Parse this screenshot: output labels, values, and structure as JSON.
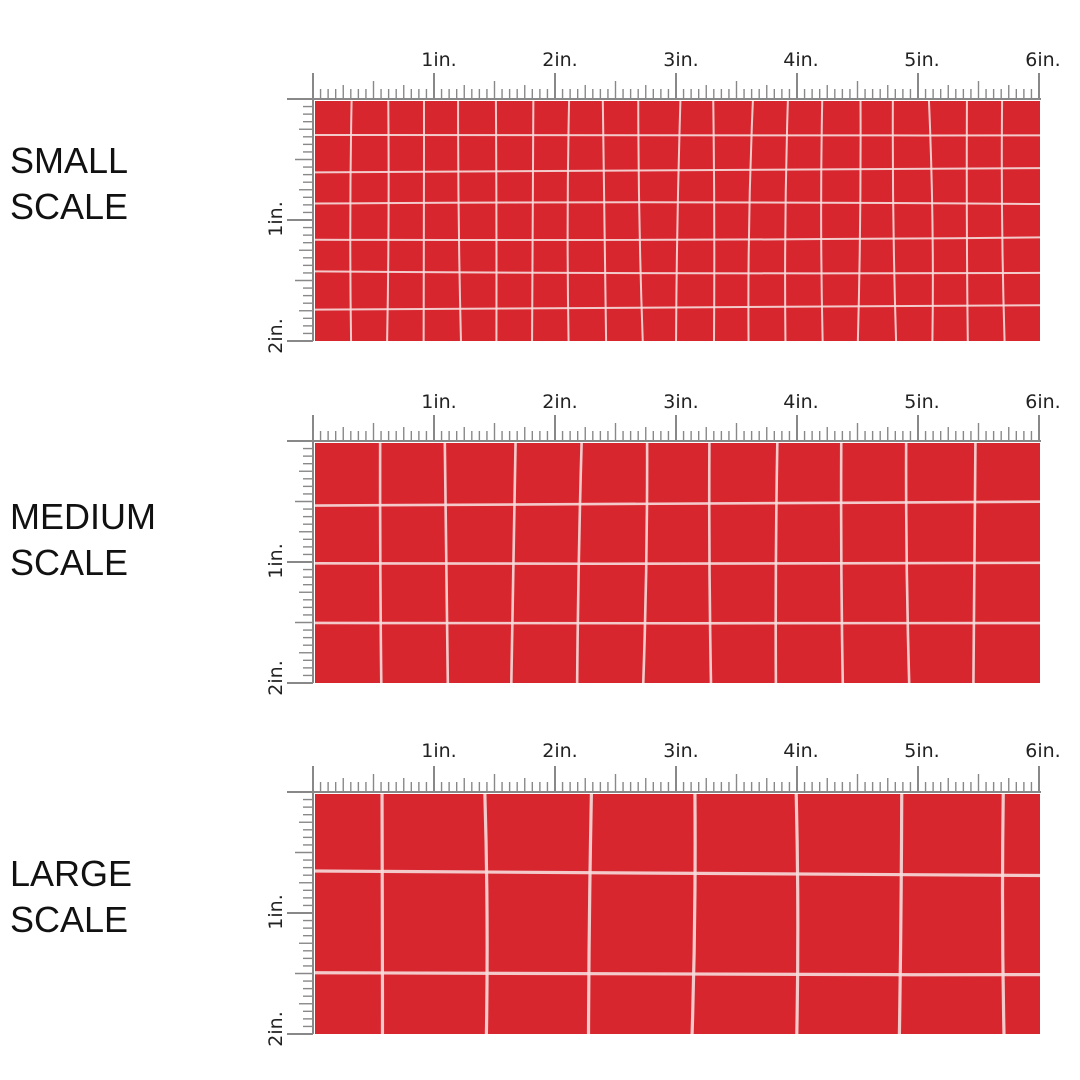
{
  "colors": {
    "fabric": "#d8262f",
    "grid_line": "#f6dcdc",
    "ruler": "#888888",
    "text": "#111111"
  },
  "ruler": {
    "top_labels": [
      "1in.",
      "2in.",
      "3in.",
      "4in.",
      "5in.",
      "6in."
    ],
    "side_labels": [
      "1in.",
      "2in."
    ]
  },
  "sections": [
    {
      "label_line1": "SMALL",
      "label_line2": "SCALE",
      "cells_x": 20,
      "cells_y": 7
    },
    {
      "label_line1": "MEDIUM",
      "label_line2": "SCALE",
      "cells_x": 11,
      "cells_y": 4
    },
    {
      "label_line1": "LARGE",
      "label_line2": "SCALE",
      "cells_x": 7,
      "cells_y": 2.4
    }
  ]
}
